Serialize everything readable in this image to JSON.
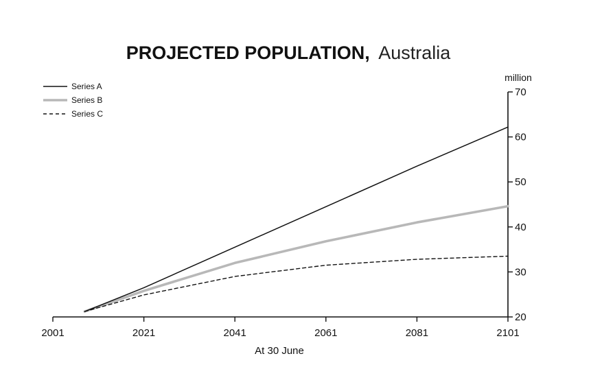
{
  "chart_data": {
    "type": "line",
    "title": "PROJECTED POPULATION,",
    "subtitle": "Australia",
    "xlabel": "At 30 June",
    "ylabel": "million",
    "xlim": [
      2001,
      2101
    ],
    "ylim": [
      20,
      70
    ],
    "x_ticks": [
      2001,
      2021,
      2041,
      2061,
      2081,
      2101
    ],
    "y_ticks": [
      20,
      30,
      40,
      50,
      60,
      70
    ],
    "y_axis_position": "right",
    "grid": false,
    "legend_position": "top-left",
    "series": [
      {
        "name": "Series A",
        "style": "solid",
        "color": "#111111",
        "x": [
          2008,
          2021,
          2041,
          2061,
          2081,
          2101
        ],
        "y": [
          21.2,
          26.5,
          35.5,
          44.5,
          53.5,
          62.2
        ]
      },
      {
        "name": "Series B",
        "style": "solid-thick",
        "color": "#b8b8b8",
        "x": [
          2008,
          2021,
          2041,
          2061,
          2081,
          2101
        ],
        "y": [
          21.2,
          25.8,
          32.0,
          36.8,
          41.0,
          44.6
        ]
      },
      {
        "name": "Series C",
        "style": "dashed",
        "color": "#111111",
        "x": [
          2008,
          2021,
          2041,
          2061,
          2081,
          2101
        ],
        "y": [
          21.2,
          24.9,
          29.0,
          31.5,
          32.8,
          33.5
        ]
      }
    ]
  }
}
